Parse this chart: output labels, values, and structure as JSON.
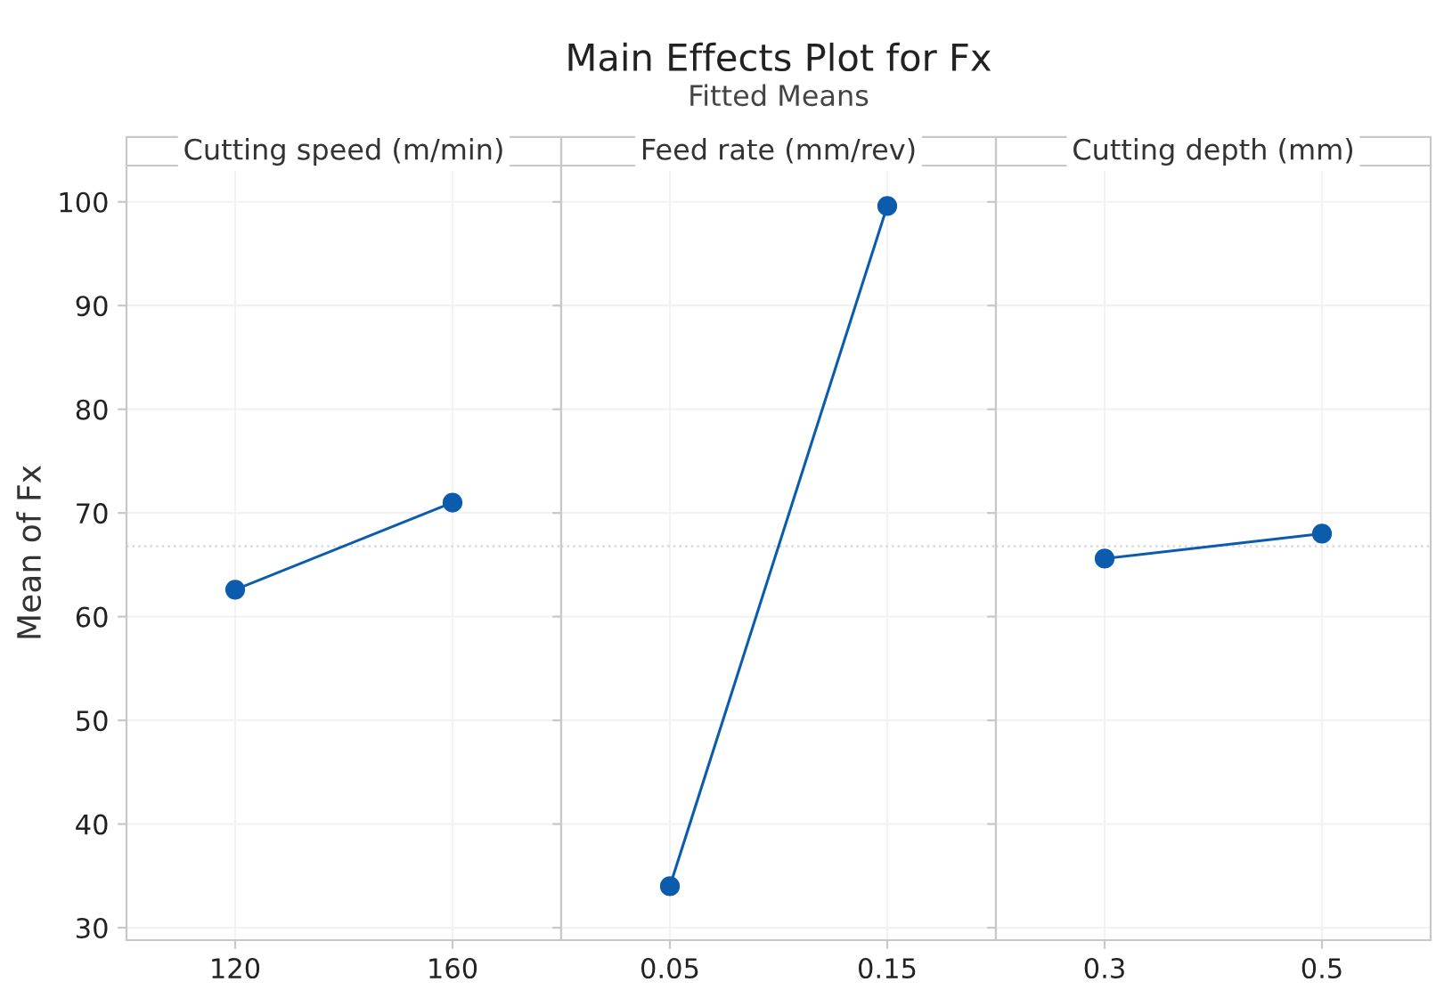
{
  "chart_data": [
    {
      "type": "line",
      "xlabel": "Cutting speed (m/min)",
      "ylabel": "Mean of Fx",
      "categories": [
        "120",
        "160"
      ],
      "series": [
        {
          "color": "#0b5cad",
          "values": [
            62.6,
            71.0
          ]
        }
      ],
      "ylim": [
        28.8,
        103.5
      ],
      "yticks": [
        30,
        40,
        50,
        60,
        70,
        80,
        90,
        100
      ],
      "grid": true,
      "marker": "circle",
      "line_style": "solid",
      "ref_lines": [
        {
          "axis": "y",
          "value": 66.8,
          "color": "#d9d9d9",
          "line_style": "dotted"
        }
      ]
    },
    {
      "type": "line",
      "title": "Main Effects Plot for Fx",
      "subtitle": "Fitted Means",
      "xlabel": "Feed rate (mm/rev)",
      "categories": [
        "0.05",
        "0.15"
      ],
      "series": [
        {
          "color": "#0b5cad",
          "values": [
            34.0,
            99.6
          ]
        }
      ],
      "ylim": [
        28.8,
        103.5
      ],
      "yticks": [
        30,
        40,
        50,
        60,
        70,
        80,
        90,
        100
      ],
      "tick_labels": "x",
      "grid": true,
      "marker": "circle",
      "line_style": "solid",
      "ref_lines": [
        {
          "axis": "y",
          "value": 66.8,
          "color": "#d9d9d9",
          "line_style": "dotted"
        }
      ]
    },
    {
      "type": "line",
      "xlabel": "Cutting depth (mm)",
      "categories": [
        "0.3",
        "0.5"
      ],
      "series": [
        {
          "color": "#0b5cad",
          "values": [
            65.6,
            68.0
          ]
        }
      ],
      "ylim": [
        28.8,
        103.5
      ],
      "yticks": [
        30,
        40,
        50,
        60,
        70,
        80,
        90,
        100
      ],
      "tick_labels": "x",
      "grid": true,
      "marker": "circle",
      "line_style": "solid",
      "ref_lines": [
        {
          "axis": "y",
          "value": 66.8,
          "color": "#d9d9d9",
          "line_style": "dotted"
        }
      ]
    }
  ]
}
